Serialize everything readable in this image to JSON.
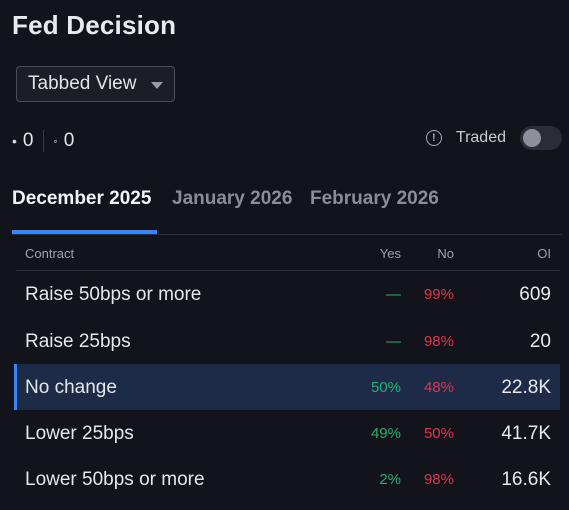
{
  "title": "Fed Decision",
  "view_select": {
    "label": "Tabbed View"
  },
  "counts": {
    "filled": "0",
    "open": "0"
  },
  "traded": {
    "label": "Traded",
    "enabled": false
  },
  "tabs": [
    {
      "label": "December 2025",
      "active": true
    },
    {
      "label": "January 2026",
      "active": false
    },
    {
      "label": "February 2026",
      "active": false
    }
  ],
  "table": {
    "headers": {
      "contract": "Contract",
      "yes": "Yes",
      "no": "No",
      "oi": "OI"
    },
    "rows": [
      {
        "name": "Raise 50bps or more",
        "yes": "—",
        "no": "99%",
        "oi": "609"
      },
      {
        "name": "Raise 25bps",
        "yes": "—",
        "no": "98%",
        "oi": "20"
      },
      {
        "name": "No change",
        "yes": "50%",
        "no": "48%",
        "oi": "22.8K",
        "selected": true
      },
      {
        "name": "Lower 25bps",
        "yes": "49%",
        "no": "50%",
        "oi": "41.7K"
      },
      {
        "name": "Lower 50bps or more",
        "yes": "2%",
        "no": "98%",
        "oi": "16.6K"
      }
    ]
  },
  "colors": {
    "accent": "#3b82f6",
    "yes": "#23b26d",
    "no": "#e0344b",
    "background": "#13141b"
  }
}
